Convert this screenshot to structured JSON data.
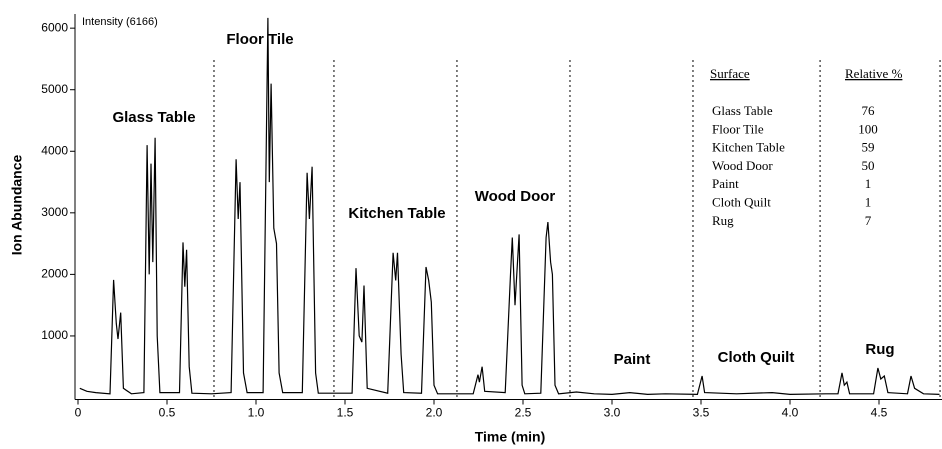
{
  "chart_data": {
    "type": "line",
    "annotation": "Intensity (6166)",
    "xlabel": "Time (min)",
    "ylabel": "Ion Abundance",
    "color": "#000000",
    "xlim": [
      0,
      4.854
    ],
    "ylim": [
      0,
      6230
    ],
    "xticks": [
      0,
      0.5,
      {
        "value": 1,
        "label": "1.0"
      },
      1.5,
      {
        "value": 2,
        "label": "2.0"
      },
      2.5,
      {
        "value": 3,
        "label": "3.0"
      },
      3.5,
      {
        "value": 4,
        "label": "4.0"
      },
      4.5
    ],
    "yticks": [
      1000,
      2000,
      3000,
      4000,
      5000,
      6000
    ],
    "dividers": [
      0.764,
      1.438,
      2.129,
      2.764,
      3.455,
      4.169,
      4.843
    ],
    "region_labels": [
      "Glass Table",
      "Floor Tile",
      "Kitchen Table",
      "Wood Door",
      "Paint",
      "Cloth Quilt",
      "Rug"
    ],
    "table": {
      "headers": [
        "Surface",
        "Relative %"
      ],
      "rows": [
        [
          "Glass Table",
          76
        ],
        [
          "Floor Tile",
          100
        ],
        [
          "Kitchen Table",
          59
        ],
        [
          "Wood Door",
          50
        ],
        [
          "Paint",
          1
        ],
        [
          "Cloth Quilt",
          1
        ],
        [
          "Rug",
          7
        ]
      ]
    },
    "x": [
      0.01,
      0.05,
      0.1,
      0.18,
      0.2,
      0.215,
      0.225,
      0.24,
      0.255,
      0.3,
      0.37,
      0.388,
      0.4,
      0.41,
      0.42,
      0.433,
      0.445,
      0.46,
      0.57,
      0.59,
      0.6,
      0.61,
      0.625,
      0.64,
      0.75,
      0.86,
      0.888,
      0.9,
      0.91,
      0.93,
      0.95,
      1.04,
      1.067,
      1.075,
      1.085,
      1.1,
      1.115,
      1.13,
      1.15,
      1.26,
      1.287,
      1.3,
      1.315,
      1.335,
      1.35,
      1.54,
      1.562,
      1.58,
      1.595,
      1.607,
      1.625,
      1.74,
      1.77,
      1.785,
      1.795,
      1.815,
      1.83,
      1.93,
      1.955,
      1.97,
      1.985,
      2.0,
      2.02,
      2.22,
      2.247,
      2.255,
      2.27,
      2.285,
      2.4,
      2.43,
      2.44,
      2.455,
      2.478,
      2.495,
      2.51,
      2.6,
      2.63,
      2.64,
      2.655,
      2.665,
      2.68,
      2.7,
      2.8,
      2.9,
      3.0,
      3.1,
      3.2,
      3.3,
      3.48,
      3.506,
      3.52,
      3.7,
      3.9,
      4.0,
      4.2,
      4.27,
      4.292,
      4.305,
      4.32,
      4.335,
      4.47,
      4.494,
      4.51,
      4.53,
      4.55,
      4.66,
      4.68,
      4.7,
      4.75,
      4.84
    ],
    "values": [
      150,
      100,
      80,
      60,
      1910,
      1200,
      950,
      1380,
      150,
      60,
      80,
      4100,
      2000,
      3800,
      2200,
      4220,
      1000,
      80,
      80,
      2520,
      1800,
      2400,
      500,
      70,
      60,
      80,
      3870,
      2900,
      3500,
      400,
      80,
      80,
      6166,
      3500,
      5100,
      2750,
      2500,
      400,
      80,
      80,
      3650,
      2900,
      3750,
      400,
      70,
      70,
      2100,
      1000,
      900,
      1820,
      150,
      70,
      2350,
      1900,
      2350,
      700,
      80,
      70,
      2120,
      1900,
      1550,
      200,
      60,
      60,
      370,
      250,
      500,
      100,
      80,
      2000,
      2600,
      1500,
      2650,
      200,
      60,
      70,
      2600,
      2850,
      2200,
      2000,
      200,
      60,
      90,
      60,
      50,
      80,
      50,
      60,
      50,
      350,
      80,
      60,
      80,
      50,
      60,
      60,
      400,
      200,
      250,
      60,
      60,
      480,
      300,
      350,
      80,
      60,
      350,
      150,
      60,
      50
    ]
  }
}
